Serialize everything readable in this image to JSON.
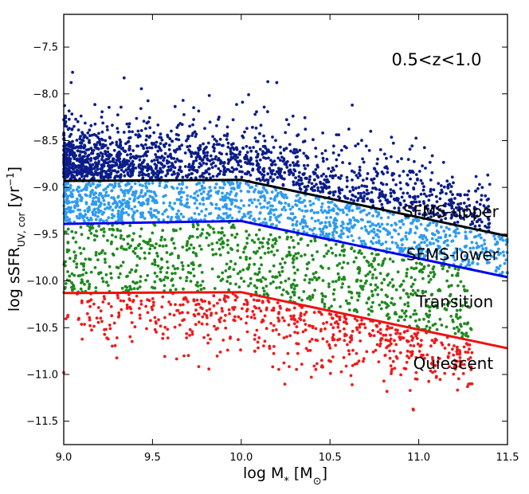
{
  "chart_data": {
    "type": "scatter",
    "title": "",
    "panel_label": "0.5<z<1.0",
    "xlabel": {
      "main": "log M",
      "sub1": "*",
      "mid": " [M",
      "sub2": "⊙",
      "end": "]"
    },
    "ylabel": {
      "main": "log sSFR",
      "sub": "UV, cor",
      "mid": " [yr",
      "sup": "−1",
      "end": "]"
    },
    "xlim": [
      9.0,
      11.5
    ],
    "ylim": [
      -11.75,
      -7.15
    ],
    "xticks": [
      9.0,
      9.5,
      10.0,
      10.5,
      11.0,
      11.5
    ],
    "xtick_labels": [
      "9.0",
      "9.5",
      "10.0",
      "10.5",
      "11.0",
      "11.5"
    ],
    "yticks": [
      -11.5,
      -11.0,
      -10.5,
      -10.0,
      -9.5,
      -9.0,
      -8.5,
      -8.0,
      -7.5
    ],
    "ytick_labels": [
      "−11.5",
      "−11.0",
      "−10.5",
      "−10.0",
      "−9.5",
      "−9.0",
      "−8.5",
      "−8.0",
      "−7.5"
    ],
    "grid": false,
    "boundary_lines": [
      {
        "name": "SFMS-upper",
        "color": "#000000",
        "x": [
          9.0,
          10.0,
          11.5
        ],
        "y": [
          -8.93,
          -8.92,
          -9.52
        ]
      },
      {
        "name": "SFMS-lower",
        "color": "#0000ee",
        "x": [
          9.0,
          10.0,
          11.5
        ],
        "y": [
          -9.39,
          -9.36,
          -9.96
        ]
      },
      {
        "name": "Quiescent-boundary",
        "color": "#ee1111",
        "x": [
          9.0,
          10.0,
          11.5
        ],
        "y": [
          -10.13,
          -10.12,
          -10.72
        ]
      }
    ],
    "region_labels": [
      {
        "text": "SFMS-upper",
        "x": 11.45,
        "y": -9.26
      },
      {
        "text": "SFMS-lower",
        "x": 11.45,
        "y": -9.72
      },
      {
        "text": "Transition",
        "x": 11.42,
        "y": -10.22
      },
      {
        "text": "Quiescent",
        "x": 11.42,
        "y": -10.88
      }
    ],
    "series": [
      {
        "name": "SFMS-upper",
        "color": "#0b1d8a",
        "count": 1700,
        "xrange": [
          9.0,
          11.4
        ],
        "upper_offset": 1.05,
        "anchor": "upper"
      },
      {
        "name": "SFMS-lower",
        "color": "#2f9bf0",
        "count": 1200,
        "xrange": [
          9.0,
          11.5
        ],
        "anchor": "between_upper_lower"
      },
      {
        "name": "Transition",
        "color": "#1e8a1e",
        "count": 900,
        "xrange": [
          9.0,
          11.3
        ],
        "anchor": "between_lower_quiescent"
      },
      {
        "name": "Quiescent",
        "color": "#ee1b1b",
        "count": 620,
        "xrange": [
          9.0,
          11.3
        ],
        "lower_offset": 0.95,
        "anchor": "quiescent"
      }
    ],
    "highlight_points": [
      {
        "series": "SFMS-upper",
        "x": 9.05,
        "y": -7.77
      },
      {
        "series": "SFMS-upper",
        "x": 9.34,
        "y": -7.83
      },
      {
        "series": "SFMS-upper",
        "x": 10.15,
        "y": -7.87
      },
      {
        "series": "SFMS-upper",
        "x": 10.2,
        "y": -7.88
      },
      {
        "series": "Quiescent",
        "x": 10.97,
        "y": -11.38
      },
      {
        "series": "Quiescent",
        "x": 9.0,
        "y": -10.98
      },
      {
        "series": "Quiescent",
        "x": 11.3,
        "y": -11.1
      }
    ]
  }
}
